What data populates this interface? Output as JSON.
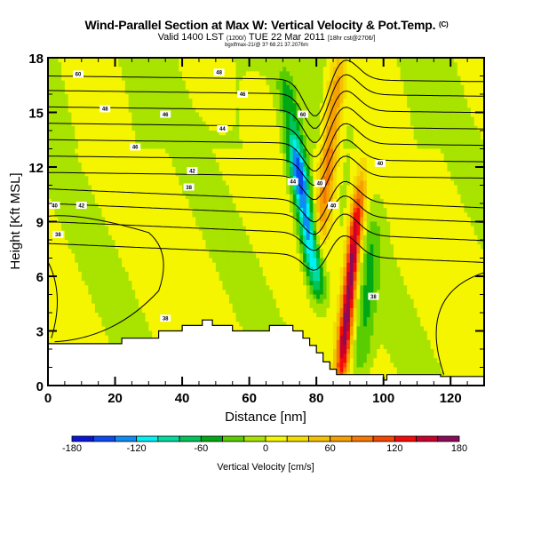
{
  "header": {
    "title": "Wind-Parallel Section at Max W: Vertical Velocity & Pot.Temp.",
    "title_mark": "(C)",
    "valid_prefix": "Valid 1400 LST",
    "valid_utc": "(1200/)",
    "valid_date": "TUE 22 Mar 2011",
    "run_info": "[18hr cst@2706/]",
    "subline": "bgxlfmax-21/@ 3? 68.21 37.2076m"
  },
  "chart_data": {
    "type": "heatmap",
    "title": "Wind-Parallel Section at Max W: Vertical Velocity & Pot.Temp.",
    "xlabel": "Distance [nm]",
    "ylabel": "Height [Kft MSL]",
    "xlim": [
      0,
      130
    ],
    "ylim": [
      0,
      18
    ],
    "xticks": [
      0,
      20,
      40,
      60,
      80,
      100,
      120
    ],
    "yticks": [
      0,
      3,
      6,
      9,
      12,
      15,
      18
    ],
    "colorbar": {
      "label": "Vertical Velocity [cm/s]",
      "range": [
        -180,
        180
      ],
      "step": 20,
      "tick_labels": [
        "-180",
        "-120",
        "-60",
        "0",
        "60",
        "120",
        "180"
      ],
      "colors": [
        "#0a16d6",
        "#0a4af0",
        "#0d8cf5",
        "#00f0f5",
        "#00dca0",
        "#00c45a",
        "#00a815",
        "#5acd00",
        "#a9e300",
        "#f5f500",
        "#f5dc00",
        "#f5c000",
        "#f5a000",
        "#f57800",
        "#f54600",
        "#f50a0a",
        "#c8002d",
        "#8c0a5a"
      ],
      "placement": "bottom"
    },
    "vertical_velocity_features": [
      {
        "name": "background",
        "x_center": 65,
        "value": 5
      },
      {
        "name": "downdraft-core",
        "x_center": 77,
        "z_low": 6,
        "z_high": 12,
        "value": -140
      },
      {
        "name": "downdraft-upper",
        "x_center": 73,
        "z_low": 12,
        "z_high": 16,
        "value": -60
      },
      {
        "name": "updraft-upper",
        "x_center": 84,
        "z_low": 9,
        "z_high": 17,
        "value": 90
      },
      {
        "name": "updraft-core",
        "x_center": 90,
        "z_low": 1,
        "z_high": 10,
        "value": 170
      },
      {
        "name": "sink-lee",
        "x_center": 95,
        "z_low": 1,
        "z_high": 8,
        "value": -45
      }
    ],
    "isentropes": {
      "labels": [
        "60",
        "48",
        "48",
        "60",
        "46",
        "46",
        "44",
        "46",
        "42",
        "44",
        "40",
        "42",
        "38",
        "40",
        "40",
        "40",
        "38",
        "38",
        "38"
      ],
      "levels_K": [
        38,
        40,
        42,
        44,
        46,
        48,
        50
      ],
      "note": "potential temperature contours (labeled values as shown)"
    },
    "terrain_kft": [
      [
        0,
        2.3
      ],
      [
        11,
        2.3
      ],
      [
        22,
        2.3
      ],
      [
        22,
        2.6
      ],
      [
        33,
        2.6
      ],
      [
        33,
        3.0
      ],
      [
        40,
        3.0
      ],
      [
        40,
        3.3
      ],
      [
        46,
        3.3
      ],
      [
        46,
        3.6
      ],
      [
        49,
        3.6
      ],
      [
        49,
        3.3
      ],
      [
        55,
        3.3
      ],
      [
        55,
        3.0
      ],
      [
        66,
        3.0
      ],
      [
        66,
        3.3
      ],
      [
        73,
        3.3
      ],
      [
        73,
        3.0
      ],
      [
        76,
        3.0
      ],
      [
        76,
        2.6
      ],
      [
        78,
        2.6
      ],
      [
        78,
        2.2
      ],
      [
        80,
        2.2
      ],
      [
        80,
        1.8
      ],
      [
        82,
        1.8
      ],
      [
        82,
        1.3
      ],
      [
        84,
        1.3
      ],
      [
        84,
        0.9
      ],
      [
        86,
        0.9
      ],
      [
        86,
        0.6
      ],
      [
        100,
        0.6
      ],
      [
        100,
        0.3
      ],
      [
        101,
        0.3
      ],
      [
        101,
        0.6
      ],
      [
        117,
        0.6
      ],
      [
        117,
        0.5
      ],
      [
        130,
        0.5
      ]
    ],
    "annotations": [
      "60",
      "48",
      "46",
      "44",
      "42",
      "40",
      "38"
    ]
  }
}
